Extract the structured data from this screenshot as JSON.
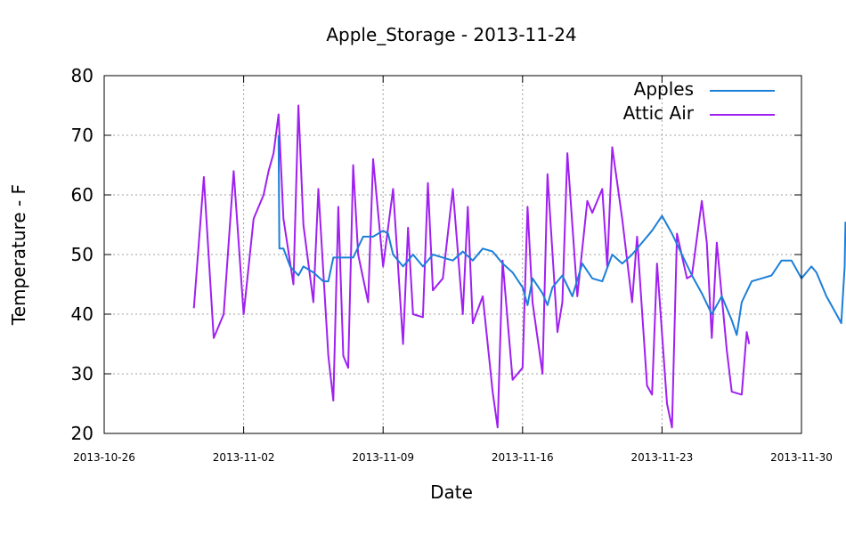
{
  "chart_data": {
    "type": "line",
    "title": "Apple_Storage - 2013-11-24",
    "xlabel": "Date",
    "ylabel": "Temperature - F",
    "x_ticks": [
      "2013-10-26",
      "2013-11-02",
      "2013-11-09",
      "2013-11-16",
      "2013-11-23",
      "2013-11-30"
    ],
    "y_ticks": [
      20,
      30,
      40,
      50,
      60,
      70,
      80
    ],
    "xlim": [
      "2013-10-26",
      "2013-11-30"
    ],
    "ylim": [
      20,
      80
    ],
    "grid": true,
    "legend_position": "top-right",
    "series": [
      {
        "name": "Apples",
        "color": "#1c7fd8",
        "points": [
          [
            "2013-11-03 18:00",
            70.0
          ],
          [
            "2013-11-03 19:00",
            51.0
          ],
          [
            "2013-11-04 00:00",
            51.0
          ],
          [
            "2013-11-04 08:00",
            48.0
          ],
          [
            "2013-11-04 18:00",
            46.5
          ],
          [
            "2013-11-05 00:00",
            48.0
          ],
          [
            "2013-11-05 12:00",
            47.0
          ],
          [
            "2013-11-06 00:00",
            45.5
          ],
          [
            "2013-11-06 06:00",
            45.5
          ],
          [
            "2013-11-06 12:00",
            49.5
          ],
          [
            "2013-11-07 00:00",
            49.5
          ],
          [
            "2013-11-07 12:00",
            49.5
          ],
          [
            "2013-11-08 00:00",
            53.0
          ],
          [
            "2013-11-08 12:00",
            53.0
          ],
          [
            "2013-11-09 00:00",
            54.0
          ],
          [
            "2013-11-09 06:00",
            53.5
          ],
          [
            "2013-11-09 12:00",
            50.0
          ],
          [
            "2013-11-10 00:00",
            48.0
          ],
          [
            "2013-11-10 12:00",
            50.0
          ],
          [
            "2013-11-11 00:00",
            48.0
          ],
          [
            "2013-11-11 12:00",
            50.0
          ],
          [
            "2013-11-12 00:00",
            49.5
          ],
          [
            "2013-11-12 12:00",
            49.0
          ],
          [
            "2013-11-13 00:00",
            50.5
          ],
          [
            "2013-11-13 12:00",
            49.0
          ],
          [
            "2013-11-14 00:00",
            51.0
          ],
          [
            "2013-11-14 12:00",
            50.5
          ],
          [
            "2013-11-15 00:00",
            48.5
          ],
          [
            "2013-11-15 12:00",
            47.0
          ],
          [
            "2013-11-16 00:00",
            44.5
          ],
          [
            "2013-11-16 06:00",
            41.5
          ],
          [
            "2013-11-16 12:00",
            46.0
          ],
          [
            "2013-11-17 00:00",
            43.5
          ],
          [
            "2013-11-17 06:00",
            41.5
          ],
          [
            "2013-11-17 12:00",
            44.5
          ],
          [
            "2013-11-18 00:00",
            46.5
          ],
          [
            "2013-11-18 12:00",
            43.0
          ],
          [
            "2013-11-19 00:00",
            48.5
          ],
          [
            "2013-11-19 12:00",
            46.0
          ],
          [
            "2013-11-20 00:00",
            45.5
          ],
          [
            "2013-11-20 12:00",
            50.0
          ],
          [
            "2013-11-21 00:00",
            48.5
          ],
          [
            "2013-11-21 12:00",
            50.0
          ],
          [
            "2013-11-22 00:00",
            52.0
          ],
          [
            "2013-11-22 12:00",
            54.0
          ],
          [
            "2013-11-23 00:00",
            56.5
          ],
          [
            "2013-11-23 12:00",
            53.5
          ],
          [
            "2013-11-24 00:00",
            50.0
          ],
          [
            "2013-11-24 12:00",
            46.5
          ],
          [
            "2013-11-25 00:00",
            43.5
          ],
          [
            "2013-11-25 12:00",
            40.0
          ],
          [
            "2013-11-26 00:00",
            43.0
          ],
          [
            "2013-11-26 12:00",
            39.0
          ],
          [
            "2013-11-26 18:00",
            36.5
          ],
          [
            "2013-11-27 00:00",
            42.0
          ],
          [
            "2013-11-27 12:00",
            45.5
          ],
          [
            "2013-11-28 00:00",
            46.0
          ],
          [
            "2013-11-28 12:00",
            46.5
          ],
          [
            "2013-11-29 00:00",
            49.0
          ],
          [
            "2013-11-29 12:00",
            49.0
          ],
          [
            "2013-11-30 00:00",
            46.0
          ],
          [
            "2013-11-30 12:00",
            48.0
          ],
          [
            "2013-11-30 18:00",
            47.0
          ],
          [
            "2013-12-01 06:00",
            43.0
          ],
          [
            "2013-12-01 18:00",
            40.0
          ],
          [
            "2013-12-02 00:00",
            38.5
          ],
          [
            "2013-12-02 04:00",
            48.0
          ],
          [
            "2013-12-02 05:00",
            55.5
          ]
        ]
      },
      {
        "name": "Attic Air",
        "color": "#a020f0",
        "points": [
          [
            "2013-10-30 12:00",
            41.0
          ],
          [
            "2013-10-31 00:00",
            63.0
          ],
          [
            "2013-10-31 12:00",
            36.0
          ],
          [
            "2013-11-01 00:00",
            40.0
          ],
          [
            "2013-11-01 12:00",
            64.0
          ],
          [
            "2013-11-02 00:00",
            40.0
          ],
          [
            "2013-11-02 12:00",
            56.0
          ],
          [
            "2013-11-03 00:00",
            60.0
          ],
          [
            "2013-11-03 06:00",
            64.0
          ],
          [
            "2013-11-03 12:00",
            67.0
          ],
          [
            "2013-11-03 18:00",
            73.5
          ],
          [
            "2013-11-04 00:00",
            56.0
          ],
          [
            "2013-11-04 12:00",
            45.0
          ],
          [
            "2013-11-04 18:00",
            75.0
          ],
          [
            "2013-11-05 00:00",
            55.0
          ],
          [
            "2013-11-05 12:00",
            42.0
          ],
          [
            "2013-11-05 18:00",
            61.0
          ],
          [
            "2013-11-06 06:00",
            33.0
          ],
          [
            "2013-11-06 12:00",
            25.5
          ],
          [
            "2013-11-06 18:00",
            58.0
          ],
          [
            "2013-11-07 00:00",
            33.0
          ],
          [
            "2013-11-07 06:00",
            31.0
          ],
          [
            "2013-11-07 12:00",
            65.0
          ],
          [
            "2013-11-07 18:00",
            50.0
          ],
          [
            "2013-11-08 06:00",
            42.0
          ],
          [
            "2013-11-08 12:00",
            66.0
          ],
          [
            "2013-11-09 00:00",
            48.0
          ],
          [
            "2013-11-09 12:00",
            61.0
          ],
          [
            "2013-11-10 00:00",
            35.0
          ],
          [
            "2013-11-10 06:00",
            54.5
          ],
          [
            "2013-11-10 12:00",
            40.0
          ],
          [
            "2013-11-11 00:00",
            39.5
          ],
          [
            "2013-11-11 06:00",
            62.0
          ],
          [
            "2013-11-11 12:00",
            44.0
          ],
          [
            "2013-11-12 00:00",
            46.0
          ],
          [
            "2013-11-12 12:00",
            61.0
          ],
          [
            "2013-11-13 00:00",
            40.0
          ],
          [
            "2013-11-13 06:00",
            58.0
          ],
          [
            "2013-11-13 12:00",
            38.5
          ],
          [
            "2013-11-14 00:00",
            43.0
          ],
          [
            "2013-11-14 12:00",
            27.0
          ],
          [
            "2013-11-14 18:00",
            21.0
          ],
          [
            "2013-11-15 00:00",
            49.0
          ],
          [
            "2013-11-15 12:00",
            29.0
          ],
          [
            "2013-11-16 00:00",
            31.0
          ],
          [
            "2013-11-16 06:00",
            58.0
          ],
          [
            "2013-11-16 12:00",
            42.0
          ],
          [
            "2013-11-17 00:00",
            30.0
          ],
          [
            "2013-11-17 06:00",
            63.5
          ],
          [
            "2013-11-17 18:00",
            37.0
          ],
          [
            "2013-11-18 00:00",
            42.0
          ],
          [
            "2013-11-18 06:00",
            67.0
          ],
          [
            "2013-11-18 18:00",
            43.0
          ],
          [
            "2013-11-19 06:00",
            59.0
          ],
          [
            "2013-11-19 12:00",
            57.0
          ],
          [
            "2013-11-20 00:00",
            61.0
          ],
          [
            "2013-11-20 06:00",
            48.0
          ],
          [
            "2013-11-20 12:00",
            68.0
          ],
          [
            "2013-11-21 00:00",
            56.0
          ],
          [
            "2013-11-21 12:00",
            42.0
          ],
          [
            "2013-11-21 18:00",
            53.0
          ],
          [
            "2013-11-22 06:00",
            28.0
          ],
          [
            "2013-11-22 12:00",
            26.5
          ],
          [
            "2013-11-22 18:00",
            48.5
          ],
          [
            "2013-11-23 06:00",
            25.0
          ],
          [
            "2013-11-23 12:00",
            21.0
          ],
          [
            "2013-11-23 18:00",
            53.5
          ],
          [
            "2013-11-24 06:00",
            46.0
          ],
          [
            "2013-11-24 12:00",
            46.5
          ],
          [
            "2013-11-25 00:00",
            59.0
          ],
          [
            "2013-11-25 06:00",
            52.0
          ],
          [
            "2013-11-25 12:00",
            36.0
          ],
          [
            "2013-11-25 18:00",
            52.0
          ],
          [
            "2013-11-26 06:00",
            34.0
          ],
          [
            "2013-11-26 12:00",
            27.0
          ],
          [
            "2013-11-27 00:00",
            26.5
          ],
          [
            "2013-11-27 06:00",
            37.0
          ],
          [
            "2013-11-27 09:00",
            35.0
          ]
        ]
      }
    ]
  }
}
